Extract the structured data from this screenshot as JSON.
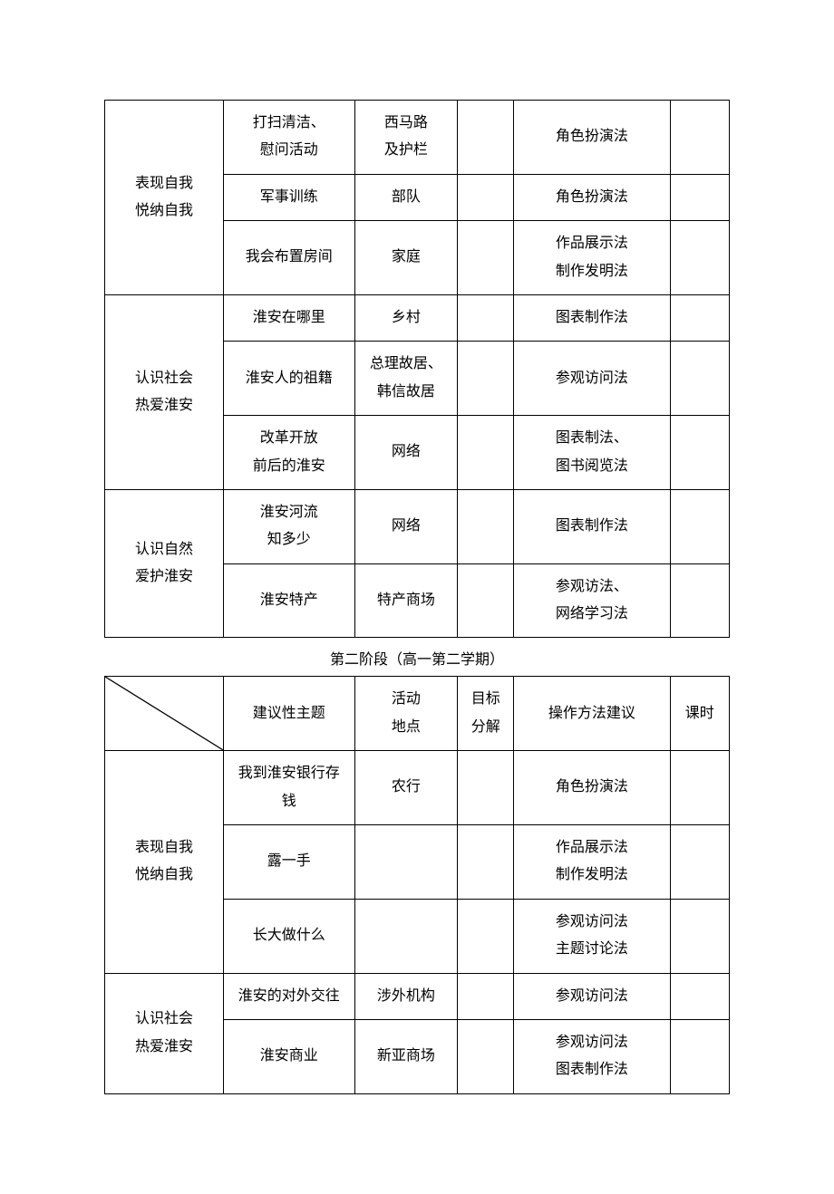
{
  "table1": {
    "rows": [
      {
        "group": "表现自我\n悦纳自我",
        "groupspan": 3,
        "topic": "打扫清洁、\n慰问活动",
        "place": "西马路\n及护栏",
        "goal": "",
        "method": "角色扮演法",
        "hours": ""
      },
      {
        "topic": "军事训练",
        "place": "部队",
        "goal": "",
        "method": "角色扮演法",
        "hours": ""
      },
      {
        "topic": "我会布置房间",
        "place": "家庭",
        "goal": "",
        "method": "作品展示法\n制作发明法",
        "hours": ""
      },
      {
        "group": "认识社会\n热爱淮安",
        "groupspan": 3,
        "topic": "淮安在哪里",
        "place": "乡村",
        "goal": "",
        "method": "图表制作法",
        "hours": ""
      },
      {
        "topic": "淮安人的祖籍",
        "place": "总理故居、\n韩信故居",
        "goal": "",
        "method": "参观访问法",
        "hours": ""
      },
      {
        "topic": "改革开放\n前后的淮安",
        "place": "网络",
        "goal": "",
        "method": "图表制法、\n图书阅览法",
        "hours": ""
      },
      {
        "group": "认识自然\n爱护淮安",
        "groupspan": 2,
        "topic": "淮安河流\n知多少",
        "place": "网络",
        "goal": "",
        "method": "图表制作法",
        "hours": ""
      },
      {
        "topic": "淮安特产",
        "place": "特产商场",
        "goal": "",
        "method": "参观访法、\n网络学习法",
        "hours": ""
      }
    ]
  },
  "caption2": "第二阶段（高一第二学期）",
  "table2": {
    "headers": [
      "",
      "建议性主题",
      "活动\n地点",
      "目标\n分解",
      "操作方法建议",
      "课时"
    ],
    "rows": [
      {
        "group": "表现自我\n悦纳自我",
        "groupspan": 3,
        "topic": "我到淮安银行存\n钱",
        "place": "农行",
        "goal": "",
        "method": "角色扮演法",
        "hours": ""
      },
      {
        "topic": "露一手",
        "place": "",
        "goal": "",
        "method": "作品展示法\n制作发明法",
        "hours": ""
      },
      {
        "topic": "长大做什么",
        "place": "",
        "goal": "",
        "method": "参观访问法\n主题讨论法",
        "hours": ""
      },
      {
        "group": "认识社会\n热爱淮安",
        "groupspan": 2,
        "topic": "淮安的对外交往",
        "place": "涉外机构",
        "goal": "",
        "method": "参观访问法",
        "hours": ""
      },
      {
        "topic": "淮安商业",
        "place": "新亚商场",
        "goal": "",
        "method": "参观访问法\n图表制作法",
        "hours": ""
      }
    ]
  }
}
